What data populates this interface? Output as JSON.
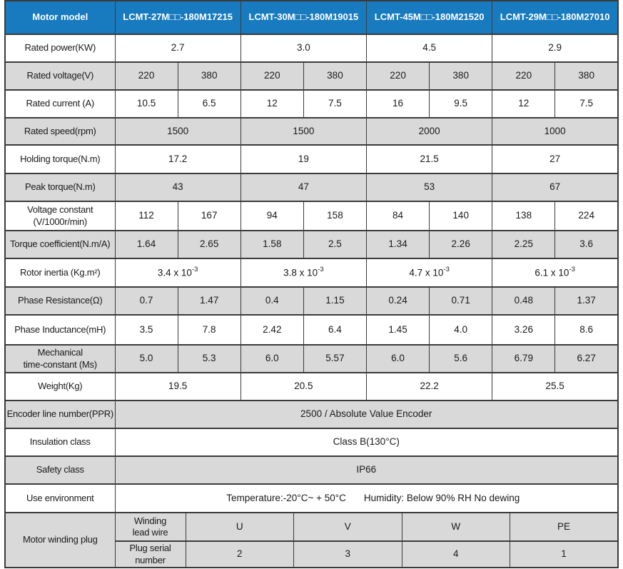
{
  "header": {
    "label": "Motor model",
    "models": [
      "LCMT-27M□□-180M17215",
      "LCMT-30M□□-180M19015",
      "LCMT-45M□□-180M21520",
      "LCMT-29M□□-180M27010"
    ]
  },
  "rows": [
    {
      "id": "rated-power",
      "label": "Rated power(KW)",
      "kind": "pair",
      "values": [
        "2.7",
        "3.0",
        "4.5",
        "2.9"
      ]
    },
    {
      "id": "rated-voltage",
      "label": "Rated voltage(V)",
      "kind": "split",
      "values": [
        "220",
        "380",
        "220",
        "380",
        "220",
        "380",
        "220",
        "380"
      ]
    },
    {
      "id": "rated-current",
      "label": "Rated current (A)",
      "kind": "split",
      "values": [
        "10.5",
        "6.5",
        "12",
        "7.5",
        "16",
        "9.5",
        "12",
        "7.5"
      ]
    },
    {
      "id": "rated-speed",
      "label": "Rated speed(rpm)",
      "kind": "pair",
      "values": [
        "1500",
        "1500",
        "2000",
        "1000"
      ]
    },
    {
      "id": "holding-torque",
      "label": "Holding torque(N.m)",
      "kind": "pair",
      "values": [
        "17.2",
        "19",
        "21.5",
        "27"
      ]
    },
    {
      "id": "peak-torque",
      "label": "Peak torque(N.m)",
      "kind": "pair",
      "values": [
        "43",
        "47",
        "53",
        "67"
      ]
    },
    {
      "id": "voltage-constant",
      "label": "Voltage constant\n(V/1000r/min)",
      "kind": "split",
      "values": [
        "112",
        "167",
        "94",
        "158",
        "84",
        "140",
        "138",
        "224"
      ]
    },
    {
      "id": "torque-coefficient",
      "label": "Torque coefficient(N.m/A)",
      "kind": "split",
      "values": [
        "1.64",
        "2.65",
        "1.58",
        "2.5",
        "1.34",
        "2.26",
        "2.25",
        "3.6"
      ]
    },
    {
      "id": "rotor-inertia",
      "label": "Rotor inertia (Kg.m²)",
      "kind": "pair",
      "values": [
        {
          "base": "3.4 x 10",
          "exp": "-3"
        },
        {
          "base": "3.8 x 10",
          "exp": "-3"
        },
        {
          "base": "4.7 x 10",
          "exp": "-3"
        },
        {
          "base": "6.1 x 10",
          "exp": "-3"
        }
      ]
    },
    {
      "id": "phase-resistance",
      "label": "Phase Resistance(Ω)",
      "kind": "split",
      "values": [
        "0.7",
        "1.47",
        "0.4",
        "1.15",
        "0.24",
        "0.71",
        "0.48",
        "1.37"
      ]
    },
    {
      "id": "phase-inductance",
      "label": "Phase Inductance(mH)",
      "kind": "split",
      "values": [
        "3.5",
        "7.8",
        "2.42",
        "6.4",
        "1.45",
        "4.0",
        "3.26",
        "8.6"
      ]
    },
    {
      "id": "mechanical-time-constant",
      "label": "Mechanical\ntime-constant (Ms)",
      "kind": "split",
      "values": [
        "5.0",
        "5.3",
        "6.0",
        "5.57",
        "6.0",
        "5.6",
        "6.79",
        "6.27"
      ]
    },
    {
      "id": "weight",
      "label": "Weight(Kg)",
      "kind": "pair",
      "values": [
        "19.5",
        "20.5",
        "22.2",
        "25.5"
      ]
    },
    {
      "id": "encoder-line-number",
      "label": "Encoder line number(PPR)",
      "kind": "full",
      "values": [
        "2500 / Absolute Value Encoder"
      ]
    },
    {
      "id": "insulation-class",
      "label": "Insulation class",
      "kind": "full",
      "values": [
        "Class B(130°C)"
      ]
    },
    {
      "id": "safety-class",
      "label": "Safety class",
      "kind": "full",
      "values": [
        "IP66"
      ]
    },
    {
      "id": "use-environment",
      "label": "Use environment",
      "kind": "full",
      "values": [
        "Temperature:-20°C~ + 50°C",
        "Humidity: Below 90% RH No dewing"
      ]
    }
  ],
  "winding": {
    "label": "Motor winding plug",
    "rows": [
      {
        "id": "winding-lead-wire",
        "label": "Winding\nlead wire",
        "values": [
          "U",
          "V",
          "W",
          "PE"
        ]
      },
      {
        "id": "plug-serial-number",
        "label": "Plug serial\nnumber",
        "values": [
          "2",
          "3",
          "4",
          "1"
        ]
      }
    ]
  },
  "colors": {
    "header_bg": "#187abf",
    "header_text": "#ffffff",
    "row_shade": "#d9d9d9",
    "border": "#3b3b3b",
    "text": "#1a1a1a"
  }
}
